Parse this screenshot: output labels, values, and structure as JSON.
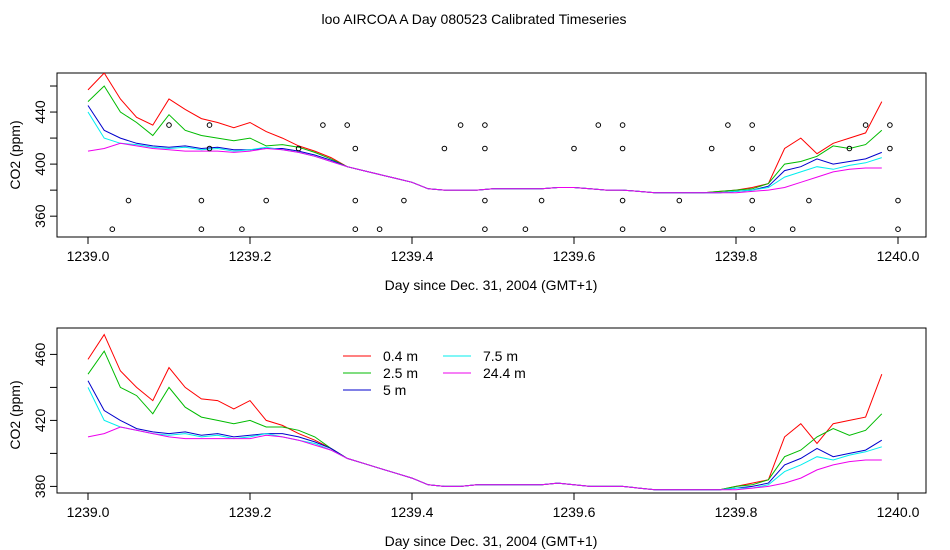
{
  "page_title": "loo AIRCOA A  Day 080523  Calibrated Timeseries",
  "colors": {
    "0.4 m": "#ff0000",
    "2.5 m": "#00bb00",
    "5 m": "#0000cc",
    "7.5 m": "#00eeee",
    "24.4 m": "#ee00ee",
    "axis": "#000000",
    "markers": "#000000"
  },
  "chart_data": [
    {
      "type": "line",
      "title": "loo AIRCOA A  Day 080523  Calibrated Timeseries",
      "xlabel": "Day since Dec. 31, 2004 (GMT+1)",
      "ylabel": "CO2 (ppm)",
      "xlim": [
        1239.0,
        1240.0
      ],
      "ylim": [
        344,
        470
      ],
      "xticks": [
        "1239.0",
        "1239.2",
        "1239.4",
        "1239.6",
        "1239.8",
        "1240.0"
      ],
      "yticks": [
        "360",
        "400",
        "440"
      ],
      "grid": false,
      "legend": "none",
      "x": [
        1239.0,
        1239.02,
        1239.04,
        1239.06,
        1239.08,
        1239.1,
        1239.12,
        1239.14,
        1239.16,
        1239.18,
        1239.2,
        1239.22,
        1239.24,
        1239.26,
        1239.28,
        1239.3,
        1239.32,
        1239.34,
        1239.36,
        1239.38,
        1239.4,
        1239.42,
        1239.44,
        1239.46,
        1239.48,
        1239.5,
        1239.52,
        1239.54,
        1239.56,
        1239.58,
        1239.6,
        1239.62,
        1239.64,
        1239.66,
        1239.68,
        1239.7,
        1239.72,
        1239.74,
        1239.76,
        1239.78,
        1239.8,
        1239.82,
        1239.84,
        1239.86,
        1239.88,
        1239.9,
        1239.92,
        1239.94,
        1239.96,
        1239.98
      ],
      "series": [
        {
          "name": "0.4 m",
          "values": [
            457,
            470,
            450,
            436,
            430,
            450,
            442,
            435,
            432,
            428,
            432,
            425,
            420,
            414,
            410,
            405,
            398,
            395,
            392,
            389,
            386,
            381,
            380,
            380,
            380,
            381,
            381,
            381,
            381,
            382,
            382,
            381,
            380,
            380,
            379,
            378,
            378,
            378,
            378,
            379,
            380,
            382,
            385,
            412,
            420,
            408,
            416,
            420,
            424,
            448
          ]
        },
        {
          "name": "2.5 m",
          "values": [
            448,
            460,
            440,
            432,
            422,
            438,
            426,
            422,
            420,
            418,
            420,
            414,
            415,
            413,
            409,
            404,
            398,
            395,
            392,
            389,
            386,
            381,
            380,
            380,
            380,
            381,
            381,
            381,
            381,
            382,
            382,
            381,
            380,
            380,
            379,
            378,
            378,
            378,
            378,
            379,
            380,
            381,
            385,
            400,
            402,
            406,
            414,
            412,
            415,
            426
          ]
        },
        {
          "name": "5 m",
          "values": [
            445,
            426,
            420,
            416,
            414,
            413,
            414,
            412,
            413,
            411,
            411,
            412,
            412,
            410,
            407,
            403,
            398,
            395,
            392,
            389,
            386,
            381,
            380,
            380,
            380,
            381,
            381,
            381,
            381,
            382,
            382,
            381,
            380,
            380,
            379,
            378,
            378,
            378,
            378,
            378,
            379,
            380,
            383,
            395,
            398,
            404,
            400,
            402,
            404,
            409
          ]
        },
        {
          "name": "7.5 m",
          "values": [
            440,
            420,
            416,
            415,
            413,
            412,
            413,
            411,
            412,
            410,
            411,
            413,
            411,
            409,
            406,
            402,
            398,
            395,
            392,
            389,
            386,
            381,
            380,
            380,
            380,
            381,
            381,
            381,
            381,
            382,
            382,
            381,
            380,
            380,
            379,
            378,
            378,
            378,
            378,
            378,
            379,
            380,
            382,
            390,
            394,
            398,
            396,
            399,
            401,
            405
          ]
        },
        {
          "name": "24.4 m",
          "values": [
            410,
            412,
            416,
            414,
            412,
            411,
            410,
            410,
            410,
            409,
            410,
            412,
            411,
            409,
            406,
            402,
            398,
            395,
            392,
            389,
            386,
            381,
            380,
            380,
            380,
            381,
            381,
            381,
            381,
            382,
            382,
            381,
            380,
            380,
            379,
            378,
            378,
            378,
            378,
            378,
            378,
            379,
            380,
            382,
            386,
            390,
            394,
            396,
            397,
            397
          ]
        }
      ],
      "markers": [
        {
          "x": 1239.03,
          "y": 350
        },
        {
          "x": 1239.05,
          "y": 372
        },
        {
          "x": 1239.1,
          "y": 430
        },
        {
          "x": 1239.14,
          "y": 350
        },
        {
          "x": 1239.14,
          "y": 372
        },
        {
          "x": 1239.15,
          "y": 412
        },
        {
          "x": 1239.15,
          "y": 430
        },
        {
          "x": 1239.19,
          "y": 350
        },
        {
          "x": 1239.22,
          "y": 372
        },
        {
          "x": 1239.26,
          "y": 412
        },
        {
          "x": 1239.29,
          "y": 430
        },
        {
          "x": 1239.32,
          "y": 430
        },
        {
          "x": 1239.33,
          "y": 412
        },
        {
          "x": 1239.33,
          "y": 372
        },
        {
          "x": 1239.33,
          "y": 350
        },
        {
          "x": 1239.36,
          "y": 350
        },
        {
          "x": 1239.39,
          "y": 372
        },
        {
          "x": 1239.44,
          "y": 412
        },
        {
          "x": 1239.46,
          "y": 430
        },
        {
          "x": 1239.49,
          "y": 350
        },
        {
          "x": 1239.49,
          "y": 372
        },
        {
          "x": 1239.49,
          "y": 412
        },
        {
          "x": 1239.49,
          "y": 430
        },
        {
          "x": 1239.54,
          "y": 350
        },
        {
          "x": 1239.56,
          "y": 372
        },
        {
          "x": 1239.6,
          "y": 412
        },
        {
          "x": 1239.63,
          "y": 430
        },
        {
          "x": 1239.66,
          "y": 430
        },
        {
          "x": 1239.66,
          "y": 412
        },
        {
          "x": 1239.66,
          "y": 372
        },
        {
          "x": 1239.66,
          "y": 350
        },
        {
          "x": 1239.71,
          "y": 350
        },
        {
          "x": 1239.73,
          "y": 372
        },
        {
          "x": 1239.77,
          "y": 412
        },
        {
          "x": 1239.79,
          "y": 430
        },
        {
          "x": 1239.82,
          "y": 430
        },
        {
          "x": 1239.82,
          "y": 412
        },
        {
          "x": 1239.82,
          "y": 372
        },
        {
          "x": 1239.82,
          "y": 350
        },
        {
          "x": 1239.87,
          "y": 350
        },
        {
          "x": 1239.89,
          "y": 372
        },
        {
          "x": 1239.94,
          "y": 412
        },
        {
          "x": 1239.96,
          "y": 430
        },
        {
          "x": 1239.99,
          "y": 430
        },
        {
          "x": 1239.99,
          "y": 412
        },
        {
          "x": 1240.0,
          "y": 372
        },
        {
          "x": 1240.0,
          "y": 350
        }
      ]
    },
    {
      "type": "line",
      "xlabel": "Day since Dec. 31, 2004 (GMT+1)",
      "ylabel": "CO2 (ppm)",
      "xlim": [
        1239.0,
        1240.0
      ],
      "ylim": [
        376,
        476
      ],
      "xticks": [
        "1239.0",
        "1239.2",
        "1239.4",
        "1239.6",
        "1239.8",
        "1240.0"
      ],
      "yticks": [
        "380",
        "420",
        "460"
      ],
      "grid": false,
      "legend": "top-center",
      "legend_entries": [
        "0.4 m",
        "2.5 m",
        "5 m",
        "7.5 m",
        "24.4 m"
      ],
      "x": [
        1239.0,
        1239.02,
        1239.04,
        1239.06,
        1239.08,
        1239.1,
        1239.12,
        1239.14,
        1239.16,
        1239.18,
        1239.2,
        1239.22,
        1239.24,
        1239.26,
        1239.28,
        1239.3,
        1239.32,
        1239.34,
        1239.36,
        1239.38,
        1239.4,
        1239.42,
        1239.44,
        1239.46,
        1239.48,
        1239.5,
        1239.52,
        1239.54,
        1239.56,
        1239.58,
        1239.6,
        1239.62,
        1239.64,
        1239.66,
        1239.68,
        1239.7,
        1239.72,
        1239.74,
        1239.76,
        1239.78,
        1239.8,
        1239.82,
        1239.84,
        1239.86,
        1239.88,
        1239.9,
        1239.92,
        1239.94,
        1239.96,
        1239.98
      ],
      "series": [
        {
          "name": "0.4 m",
          "values": [
            457,
            472,
            450,
            440,
            432,
            452,
            440,
            433,
            432,
            427,
            432,
            420,
            417,
            412,
            408,
            403,
            397,
            394,
            391,
            388,
            385,
            381,
            380,
            380,
            381,
            381,
            381,
            381,
            381,
            382,
            381,
            380,
            380,
            380,
            379,
            378,
            378,
            378,
            378,
            378,
            380,
            382,
            384,
            410,
            418,
            406,
            418,
            420,
            422,
            448
          ]
        },
        {
          "name": "2.5 m",
          "values": [
            448,
            462,
            440,
            435,
            424,
            440,
            428,
            422,
            420,
            418,
            420,
            416,
            416,
            414,
            410,
            403,
            397,
            394,
            391,
            388,
            385,
            381,
            380,
            380,
            381,
            381,
            381,
            381,
            381,
            382,
            381,
            380,
            380,
            380,
            379,
            378,
            378,
            378,
            378,
            378,
            380,
            381,
            384,
            398,
            402,
            410,
            415,
            411,
            414,
            424
          ]
        },
        {
          "name": "5 m",
          "values": [
            444,
            426,
            420,
            415,
            413,
            412,
            413,
            411,
            412,
            410,
            411,
            412,
            412,
            410,
            407,
            403,
            397,
            394,
            391,
            388,
            385,
            381,
            380,
            380,
            381,
            381,
            381,
            381,
            381,
            382,
            381,
            380,
            380,
            380,
            379,
            378,
            378,
            378,
            378,
            378,
            379,
            380,
            382,
            393,
            397,
            403,
            398,
            400,
            402,
            408
          ]
        },
        {
          "name": "7.5 m",
          "values": [
            440,
            420,
            416,
            414,
            412,
            411,
            412,
            410,
            411,
            409,
            410,
            412,
            410,
            408,
            406,
            402,
            397,
            394,
            391,
            388,
            385,
            381,
            380,
            380,
            381,
            381,
            381,
            381,
            381,
            382,
            381,
            380,
            380,
            380,
            379,
            378,
            378,
            378,
            378,
            378,
            379,
            379,
            381,
            389,
            393,
            398,
            396,
            399,
            401,
            404
          ]
        },
        {
          "name": "24.4 m",
          "values": [
            410,
            412,
            416,
            414,
            412,
            410,
            409,
            409,
            409,
            409,
            409,
            411,
            410,
            408,
            405,
            402,
            397,
            394,
            391,
            388,
            385,
            381,
            380,
            380,
            381,
            381,
            381,
            381,
            381,
            382,
            381,
            380,
            380,
            380,
            379,
            378,
            378,
            378,
            378,
            378,
            378,
            379,
            380,
            382,
            385,
            390,
            393,
            395,
            396,
            396
          ]
        }
      ]
    }
  ]
}
